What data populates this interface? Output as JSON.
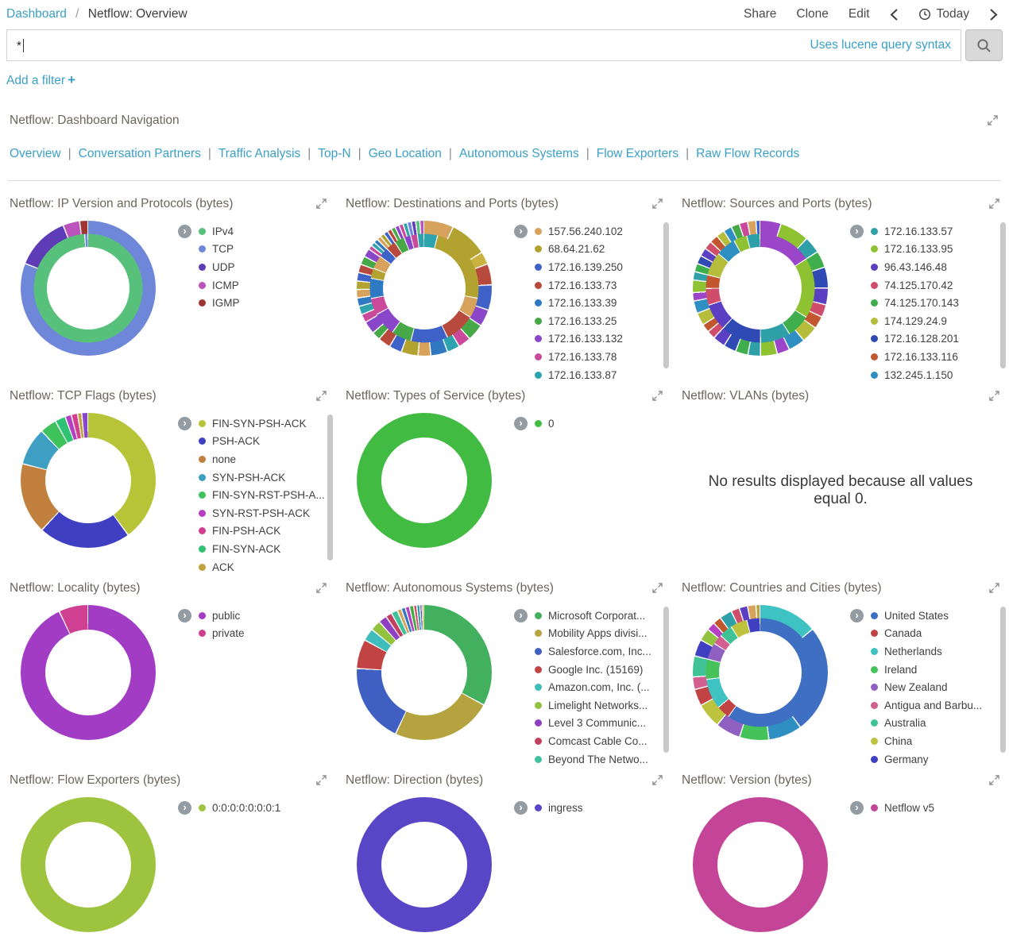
{
  "topbar": {
    "breadcrumb": {
      "root": "Dashboard",
      "separator": "/",
      "current": "Netflow: Overview"
    },
    "actions": [
      {
        "label": "Share"
      },
      {
        "label": "Clone"
      },
      {
        "label": "Edit"
      }
    ],
    "time_label": "Today"
  },
  "query": {
    "value": "*",
    "hint": "Uses lucene query syntax"
  },
  "filter_bar": {
    "label": "Add a filter",
    "plus": "+"
  },
  "nav_panel": {
    "title": "Netflow: Dashboard Navigation",
    "separator": "|",
    "links": [
      "Overview",
      "Conversation Partners",
      "Traffic Analysis",
      "Top-N",
      "Geo Location",
      "Autonomous Systems",
      "Flow Exporters",
      "Raw Flow Records"
    ]
  },
  "icons": {
    "search": "magnifier-icon",
    "time": "clock-icon",
    "expand": "expand-diagonal-icon",
    "legend_toggle_glyph": "›",
    "prev": "chevron-left-icon",
    "next": "chevron-right-icon"
  },
  "colors": {
    "link": "#3ba0c7",
    "panel_title": "#6d655e"
  },
  "panels": [
    {
      "title": "Netflow: IP Version and Protocols (bytes)",
      "type": "donut",
      "scroll": false,
      "legend": [
        {
          "label": "IPv4",
          "color": "#57c17b"
        },
        {
          "label": "TCP",
          "color": "#6f87d8"
        },
        {
          "label": "UDP",
          "color": "#5e3cb8"
        },
        {
          "label": "ICMP",
          "color": "#bc52bc"
        },
        {
          "label": "IGMP",
          "color": "#9e3533"
        }
      ],
      "rings": [
        [
          [
            "#6f87d8",
            81
          ],
          [
            "#5e3cb8",
            13
          ],
          [
            "#bc52bc",
            4
          ],
          [
            "#9e3533",
            2
          ]
        ],
        [
          [
            "#57c17b",
            99
          ],
          [
            "#6f87d8",
            1
          ]
        ]
      ]
    },
    {
      "title": "Netflow: Destinations and Ports (bytes)",
      "type": "donut",
      "scroll": true,
      "legend": [
        {
          "label": "157.56.240.102",
          "color": "#d7a25b"
        },
        {
          "label": "68.64.21.62",
          "color": "#b2a331"
        },
        {
          "label": "172.16.139.250",
          "color": "#3f62c9"
        },
        {
          "label": "172.16.133.73",
          "color": "#b84a3d"
        },
        {
          "label": "172.16.133.39",
          "color": "#2f78c2"
        },
        {
          "label": "172.16.133.25",
          "color": "#46a846"
        },
        {
          "label": "172.16.133.132",
          "color": "#8a46c9"
        },
        {
          "label": "172.16.133.78",
          "color": "#c94a9b"
        },
        {
          "label": "172.16.133.87",
          "color": "#2fa3ad"
        }
      ],
      "rings": [
        [
          [
            "#d7a25b",
            7
          ],
          [
            "#b2a331",
            9
          ],
          [
            "#c9b23f",
            3
          ],
          [
            "#b84a3d",
            5
          ],
          [
            "#3f62c9",
            6
          ],
          [
            "#8a46c9",
            4
          ],
          [
            "#46a846",
            4
          ],
          [
            "#c94a9b",
            3
          ],
          [
            "#2fa3ad",
            3
          ],
          [
            "#2f78c2",
            4
          ],
          [
            "#d7a25b",
            3
          ],
          [
            "#b2a331",
            4
          ],
          [
            "#3f62c9",
            3
          ],
          [
            "#b84a3d",
            3
          ],
          [
            "#46a846",
            2
          ],
          [
            "#8a46c9",
            3
          ],
          [
            "#c94a9b",
            2
          ],
          [
            "#2fa3ad",
            2
          ],
          [
            "#2f78c2",
            2
          ],
          [
            "#d7a25b",
            2
          ],
          [
            "#b2a331",
            2
          ],
          [
            "#3f62c9",
            2
          ],
          [
            "#b84a3d",
            2
          ],
          [
            "#46a846",
            2
          ],
          [
            "#8a46c9",
            2
          ],
          [
            "#c94a9b",
            1
          ],
          [
            "#2fa3ad",
            1
          ],
          [
            "#2f78c2",
            1
          ],
          [
            "#d7a25b",
            1
          ],
          [
            "#b2a331",
            1
          ],
          [
            "#3f62c9",
            1
          ],
          [
            "#b84a3d",
            1
          ],
          [
            "#46a846",
            1
          ],
          [
            "#8a46c9",
            1
          ],
          [
            "#c94a9b",
            1
          ],
          [
            "#2fa3ad",
            1
          ],
          [
            "#6f87d8",
            1
          ],
          [
            "#5e3cb8",
            1
          ],
          [
            "#57c17b",
            1
          ],
          [
            "#bc52bc",
            1
          ]
        ],
        [
          [
            "#2fa3ad",
            4
          ],
          [
            "#b2a331",
            24
          ],
          [
            "#d7a25b",
            6
          ],
          [
            "#b84a3d",
            9
          ],
          [
            "#3f62c9",
            11
          ],
          [
            "#46a846",
            6
          ],
          [
            "#8a46c9",
            7
          ],
          [
            "#c94a9b",
            5
          ],
          [
            "#2f78c2",
            6
          ],
          [
            "#b2a331",
            3
          ],
          [
            "#d7a25b",
            4
          ],
          [
            "#3f62c9",
            3
          ],
          [
            "#b84a3d",
            3
          ],
          [
            "#46a846",
            3
          ],
          [
            "#8a46c9",
            2
          ],
          [
            "#c94a9b",
            2
          ],
          [
            "#2fa3ad",
            2
          ]
        ]
      ]
    },
    {
      "title": "Netflow: Sources and Ports (bytes)",
      "type": "donut",
      "scroll": true,
      "legend": [
        {
          "label": "172.16.133.57",
          "color": "#2f9fa8"
        },
        {
          "label": "172.16.133.95",
          "color": "#8fc232"
        },
        {
          "label": "96.43.146.48",
          "color": "#5b3fc2"
        },
        {
          "label": "74.125.170.42",
          "color": "#cf4d6a"
        },
        {
          "label": "74.125.170.143",
          "color": "#3fae4d"
        },
        {
          "label": "174.129.24.9",
          "color": "#b5bd3a"
        },
        {
          "label": "172.16.128.201",
          "color": "#2f49b5"
        },
        {
          "label": "172.16.133.116",
          "color": "#c2572f"
        },
        {
          "label": "132.245.1.150",
          "color": "#2f8fc2"
        }
      ],
      "rings": [
        [
          [
            "#9b46c9",
            5
          ],
          [
            "#8fc232",
            7
          ],
          [
            "#2f9fa8",
            4
          ],
          [
            "#3fae4d",
            4
          ],
          [
            "#2f49b5",
            5
          ],
          [
            "#5b3fc2",
            4
          ],
          [
            "#cf4d6a",
            3
          ],
          [
            "#c2572f",
            3
          ],
          [
            "#b5bd3a",
            4
          ],
          [
            "#2f8fc2",
            4
          ],
          [
            "#9b46c9",
            3
          ],
          [
            "#8fc232",
            4
          ],
          [
            "#2f9fa8",
            3
          ],
          [
            "#3fae4d",
            3
          ],
          [
            "#2f49b5",
            3
          ],
          [
            "#5b3fc2",
            3
          ],
          [
            "#cf4d6a",
            2
          ],
          [
            "#c2572f",
            2
          ],
          [
            "#b5bd3a",
            3
          ],
          [
            "#2f8fc2",
            3
          ],
          [
            "#9b46c9",
            2
          ],
          [
            "#8fc232",
            3
          ],
          [
            "#2f9fa8",
            2
          ],
          [
            "#3fae4d",
            2
          ],
          [
            "#2f49b5",
            2
          ],
          [
            "#5b3fc2",
            2
          ],
          [
            "#cf4d6a",
            2
          ],
          [
            "#c2572f",
            2
          ],
          [
            "#b5bd3a",
            2
          ],
          [
            "#2f8fc2",
            2
          ],
          [
            "#46a846",
            2
          ],
          [
            "#c94a9b",
            2
          ],
          [
            "#d7a25b",
            2
          ],
          [
            "#3f62c9",
            1
          ]
        ],
        [
          [
            "#9b46c9",
            16
          ],
          [
            "#8fc232",
            18
          ],
          [
            "#3fae4d",
            7
          ],
          [
            "#2f9fa8",
            9
          ],
          [
            "#2f49b5",
            12
          ],
          [
            "#5b3fc2",
            8
          ],
          [
            "#cf4d6a",
            5
          ],
          [
            "#c2572f",
            4
          ],
          [
            "#b5bd3a",
            7
          ],
          [
            "#2f8fc2",
            6
          ],
          [
            "#8fc232",
            4
          ],
          [
            "#2f9fa8",
            4
          ]
        ]
      ]
    },
    {
      "title": "Netflow: TCP Flags (bytes)",
      "type": "donut",
      "scroll": true,
      "legend": [
        {
          "label": "FIN-SYN-PSH-ACK",
          "color": "#b8c437"
        },
        {
          "label": "PSH-ACK",
          "color": "#3f3fc2"
        },
        {
          "label": "none",
          "color": "#c2803f"
        },
        {
          "label": "SYN-PSH-ACK",
          "color": "#3f9fc2"
        },
        {
          "label": "FIN-SYN-RST-PSH-A...",
          "color": "#3fc25b"
        },
        {
          "label": "SYN-RST-PSH-ACK",
          "color": "#b53fc2"
        },
        {
          "label": "FIN-PSH-ACK",
          "color": "#d23f8f"
        },
        {
          "label": "FIN-SYN-ACK",
          "color": "#2fc274"
        },
        {
          "label": "ACK",
          "color": "#c2a23f"
        }
      ],
      "rings": [
        [
          [
            "#b8c437",
            40
          ],
          [
            "#3f3fc2",
            22
          ],
          [
            "#c2803f",
            17
          ],
          [
            "#3f9fc2",
            9
          ],
          [
            "#3fc25b",
            4
          ],
          [
            "#2fc274",
            2.5
          ],
          [
            "#b53fc2",
            1.5
          ],
          [
            "#d23f8f",
            1.5
          ],
          [
            "#c2a23f",
            1
          ],
          [
            "#8a46c9",
            1.5
          ]
        ]
      ]
    },
    {
      "title": "Netflow: Types of Service (bytes)",
      "type": "donut",
      "scroll": false,
      "legend": [
        {
          "label": "0",
          "color": "#41bb41"
        }
      ],
      "rings": [
        [
          [
            "#41bb41",
            100
          ]
        ]
      ]
    },
    {
      "title": "Netflow: VLANs (bytes)",
      "type": "message",
      "scroll": false,
      "legend": [],
      "rings": [],
      "message": "No results displayed because all values equal 0."
    },
    {
      "title": "Netflow: Locality (bytes)",
      "type": "donut",
      "scroll": false,
      "legend": [
        {
          "label": "public",
          "color": "#a23cc4"
        },
        {
          "label": "private",
          "color": "#cf4090"
        }
      ],
      "rings": [
        [
          [
            "#a23cc4",
            93
          ],
          [
            "#cf4090",
            7
          ]
        ]
      ]
    },
    {
      "title": "Netflow: Autonomous Systems (bytes)",
      "type": "donut",
      "scroll": true,
      "legend": [
        {
          "label": "Microsoft Corporat...",
          "color": "#43b05f"
        },
        {
          "label": "Mobility Apps divisi...",
          "color": "#b5a33f"
        },
        {
          "label": "Salesforce.com, Inc...",
          "color": "#3f5fc2"
        },
        {
          "label": "Google Inc. (15169)",
          "color": "#c24343"
        },
        {
          "label": "Amazon.com, Inc. (...",
          "color": "#3fbcbc"
        },
        {
          "label": "Limelight Networks...",
          "color": "#93c23f"
        },
        {
          "label": "Level 3 Communic...",
          "color": "#8f3fc2"
        },
        {
          "label": "Comcast Cable Co...",
          "color": "#c23f5f"
        },
        {
          "label": "Beyond The Netwo...",
          "color": "#3fc29b"
        }
      ],
      "rings": [
        [
          [
            "#43b05f",
            33
          ],
          [
            "#b5a33f",
            24
          ],
          [
            "#3f5fc2",
            19
          ],
          [
            "#c24343",
            7
          ],
          [
            "#3fbcbc",
            3
          ],
          [
            "#93c23f",
            2.5
          ],
          [
            "#8f3fc2",
            2
          ],
          [
            "#c23f5f",
            1.5
          ],
          [
            "#3fc29b",
            1.5
          ],
          [
            "#d7a25b",
            1
          ],
          [
            "#2f78c2",
            1
          ],
          [
            "#b53fc2",
            1
          ],
          [
            "#46a846",
            1
          ],
          [
            "#cf4d6a",
            0.75
          ],
          [
            "#2f9fa8",
            0.75
          ],
          [
            "#5b3fc2",
            0.5
          ],
          [
            "#b5bd3a",
            0.5
          ]
        ]
      ]
    },
    {
      "title": "Netflow: Countries and Cities (bytes)",
      "type": "donut",
      "scroll": true,
      "legend": [
        {
          "label": "United States",
          "color": "#3f6fc2"
        },
        {
          "label": "Canada",
          "color": "#c24343"
        },
        {
          "label": "Netherlands",
          "color": "#3fc2c2"
        },
        {
          "label": "Ireland",
          "color": "#46c25b"
        },
        {
          "label": "New Zealand",
          "color": "#8f5fc2"
        },
        {
          "label": "Antigua and Barbu...",
          "color": "#d25f8f"
        },
        {
          "label": "Australia",
          "color": "#3fc296"
        },
        {
          "label": "China",
          "color": "#bdc23f"
        },
        {
          "label": "Germany",
          "color": "#3f3fc2"
        }
      ],
      "rings": [
        [
          [
            "#3fc2c2",
            14
          ],
          [
            "#3f6fc2",
            26
          ],
          [
            "#2f8fc2",
            8
          ],
          [
            "#46c25b",
            7
          ],
          [
            "#8f5fc2",
            6
          ],
          [
            "#bdc23f",
            6
          ],
          [
            "#c24343",
            4
          ],
          [
            "#d25f8f",
            3
          ],
          [
            "#3fc296",
            5
          ],
          [
            "#3f3fc2",
            4
          ],
          [
            "#93c23f",
            3
          ],
          [
            "#b53fc2",
            2
          ],
          [
            "#c2572f",
            2
          ],
          [
            "#2f9fa8",
            3
          ],
          [
            "#cf4d6a",
            2
          ],
          [
            "#5b3fc2",
            2
          ],
          [
            "#d7a25b",
            2
          ],
          [
            "#b5a33f",
            1
          ]
        ],
        [
          [
            "#3f6fc2",
            60
          ],
          [
            "#c24343",
            4
          ],
          [
            "#3fc2c2",
            9
          ],
          [
            "#46c25b",
            6
          ],
          [
            "#8f5fc2",
            5
          ],
          [
            "#d25f8f",
            3
          ],
          [
            "#3fc296",
            4
          ],
          [
            "#bdc23f",
            5
          ],
          [
            "#3f3fc2",
            4
          ]
        ]
      ]
    },
    {
      "title": "Netflow: Flow Exporters (bytes)",
      "type": "donut",
      "scroll": false,
      "legend": [
        {
          "label": "0:0:0:0:0:0:0:1",
          "color": "#9ec43f"
        }
      ],
      "rings": [
        [
          [
            "#9ec43f",
            100
          ]
        ]
      ]
    },
    {
      "title": "Netflow: Direction (bytes)",
      "type": "donut",
      "scroll": false,
      "legend": [
        {
          "label": "ingress",
          "color": "#5846c6"
        }
      ],
      "rings": [
        [
          [
            "#5846c6",
            100
          ]
        ]
      ]
    },
    {
      "title": "Netflow: Version (bytes)",
      "type": "donut",
      "scroll": false,
      "legend": [
        {
          "label": "Netflow v5",
          "color": "#c44497"
        }
      ],
      "rings": [
        [
          [
            "#c44497",
            100
          ]
        ]
      ]
    }
  ]
}
